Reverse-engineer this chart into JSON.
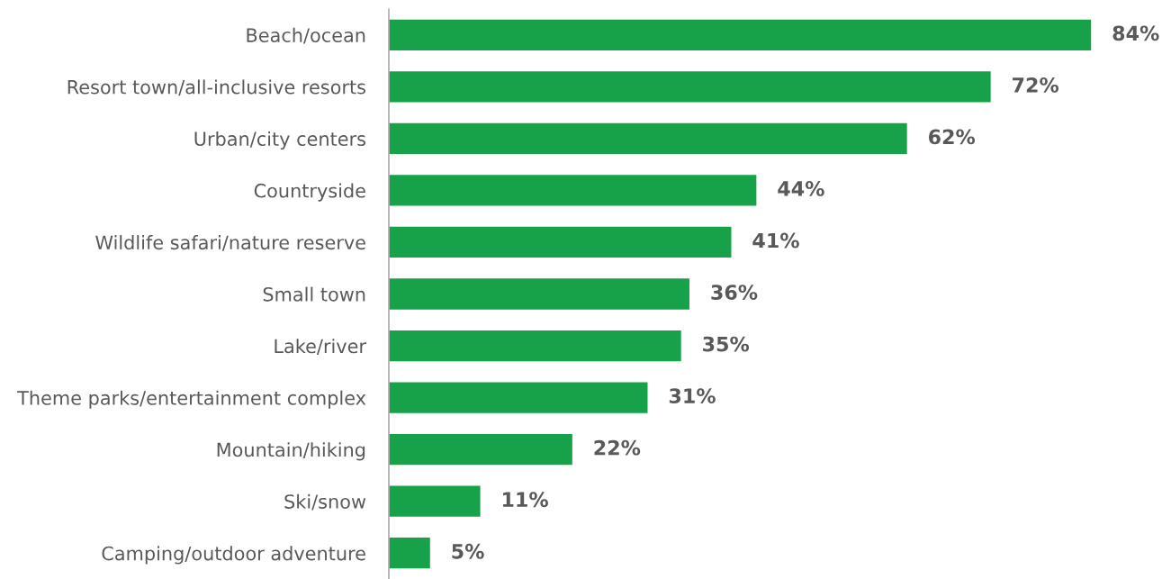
{
  "chart_data": {
    "type": "bar",
    "orientation": "horizontal",
    "categories": [
      "Beach/ocean",
      "Resort town/all-inclusive resorts",
      "Urban/city centers",
      "Countryside",
      "Wildlife safari/nature reserve",
      "Small town",
      "Lake/river",
      "Theme parks/entertainment complex",
      "Mountain/hiking",
      "Ski/snow",
      "Camping/outdoor adventure"
    ],
    "values": [
      84,
      72,
      62,
      44,
      41,
      36,
      35,
      31,
      22,
      11,
      5
    ],
    "value_labels": [
      "84%",
      "72%",
      "62%",
      "44%",
      "41%",
      "36%",
      "35%",
      "31%",
      "22%",
      "11%",
      "5%"
    ],
    "color": "#17a24a",
    "grid": false,
    "legend": false
  }
}
